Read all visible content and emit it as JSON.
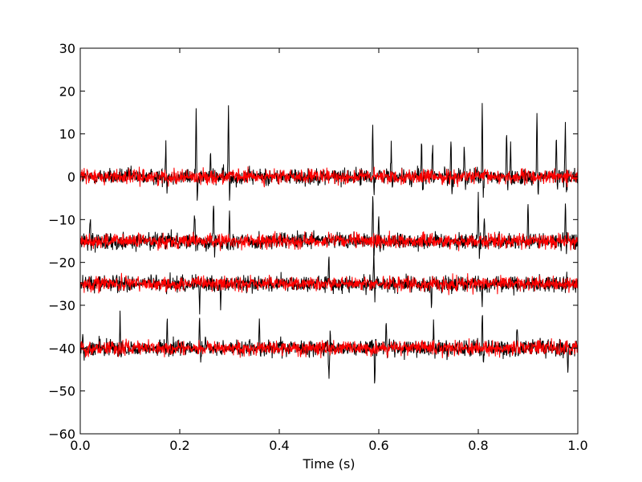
{
  "chart_data": {
    "type": "line",
    "xlabel": "Time (s)",
    "ylabel": "",
    "xlim": [
      0.0,
      1.0
    ],
    "ylim": [
      -60,
      30
    ],
    "x_ticks": [
      0.0,
      0.2,
      0.4,
      0.6,
      0.8,
      1.0
    ],
    "x_tick_labels": [
      "0.0",
      "0.2",
      "0.4",
      "0.6",
      "0.8",
      "1.0"
    ],
    "y_ticks": [
      30,
      20,
      10,
      0,
      -10,
      -20,
      -30,
      -40,
      -50,
      -60
    ],
    "y_tick_labels": [
      "30",
      "20",
      "10",
      "0",
      "−10",
      "−20",
      "−30",
      "−40",
      "−50",
      "−60"
    ],
    "grid": false,
    "legend": "none",
    "colors": {
      "raw": "#000000",
      "filtered": "#ff0000"
    },
    "series": [
      {
        "channel_offset": 0,
        "noise_amplitude": 1.5,
        "spikes": [
          {
            "t": 0.172,
            "amp": 8
          },
          {
            "t": 0.233,
            "amp": 16
          },
          {
            "t": 0.262,
            "amp": 6
          },
          {
            "t": 0.298,
            "amp": 16
          },
          {
            "t": 0.588,
            "amp": 12
          },
          {
            "t": 0.625,
            "amp": 7
          },
          {
            "t": 0.686,
            "amp": 8
          },
          {
            "t": 0.708,
            "amp": 8
          },
          {
            "t": 0.745,
            "amp": 9
          },
          {
            "t": 0.772,
            "amp": 8
          },
          {
            "t": 0.808,
            "amp": 16
          },
          {
            "t": 0.857,
            "amp": 11
          },
          {
            "t": 0.865,
            "amp": 9
          },
          {
            "t": 0.918,
            "amp": 15
          },
          {
            "t": 0.957,
            "amp": 9
          },
          {
            "t": 0.975,
            "amp": 14
          }
        ]
      },
      {
        "channel_offset": -15,
        "noise_amplitude": 1.5,
        "spikes": [
          {
            "t": 0.02,
            "amp": 5
          },
          {
            "t": 0.23,
            "amp": 7
          },
          {
            "t": 0.268,
            "amp": 9
          },
          {
            "t": 0.3,
            "amp": 8
          },
          {
            "t": 0.588,
            "amp": 11
          },
          {
            "t": 0.6,
            "amp": 6
          },
          {
            "t": 0.8,
            "amp": 12
          },
          {
            "t": 0.812,
            "amp": 7
          },
          {
            "t": 0.9,
            "amp": 8
          },
          {
            "t": 0.975,
            "amp": 10
          }
        ]
      },
      {
        "channel_offset": -25,
        "noise_amplitude": 1.5,
        "spikes": [
          {
            "t": 0.24,
            "amp": -6
          },
          {
            "t": 0.282,
            "amp": -5
          },
          {
            "t": 0.5,
            "amp": 5
          },
          {
            "t": 0.59,
            "amp": 8
          },
          {
            "t": 0.706,
            "amp": -6
          },
          {
            "t": 0.808,
            "amp": -5
          }
        ]
      },
      {
        "channel_offset": -40,
        "noise_amplitude": 1.5,
        "spikes": [
          {
            "t": 0.005,
            "amp": 4
          },
          {
            "t": 0.08,
            "amp": 8
          },
          {
            "t": 0.175,
            "amp": 6
          },
          {
            "t": 0.24,
            "amp": 7
          },
          {
            "t": 0.36,
            "amp": 7
          },
          {
            "t": 0.5,
            "amp": -7
          },
          {
            "t": 0.592,
            "amp": -8
          },
          {
            "t": 0.615,
            "amp": 6
          },
          {
            "t": 0.71,
            "amp": 6
          },
          {
            "t": 0.808,
            "amp": 7
          },
          {
            "t": 0.878,
            "amp": 6
          },
          {
            "t": 0.98,
            "amp": -6
          }
        ]
      }
    ]
  }
}
